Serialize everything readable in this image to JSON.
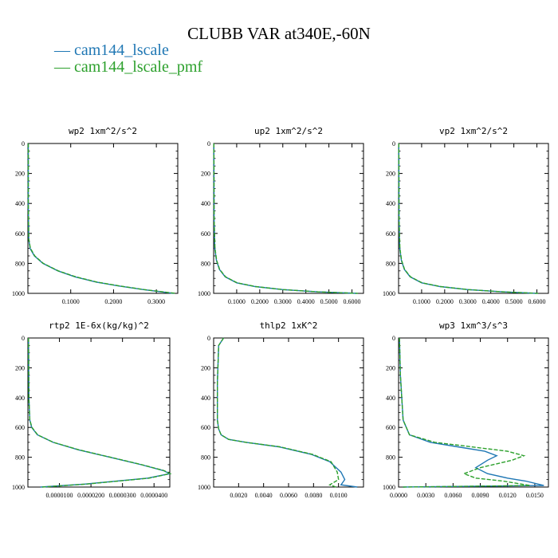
{
  "title": "CLUBB VAR at340E,-60N",
  "legend": [
    {
      "label": "cam144_lscale",
      "color": "#1f77b4",
      "style": "solid"
    },
    {
      "label": "cam144_lscale_pmf",
      "color": "#2ca02c",
      "style": "dashed"
    }
  ],
  "chart_data": [
    {
      "type": "line",
      "title": "wp2  1xm^2/s^2",
      "xlim": [
        0,
        0.35
      ],
      "xticks": [
        0.1,
        0.2,
        0.3
      ],
      "xtick_labels": [
        "0.1000",
        "0.2000",
        "0.3000"
      ],
      "ylim": [
        1000,
        0
      ],
      "yticks": [
        0,
        200,
        400,
        600,
        800,
        1000
      ],
      "ytick_labels": [
        "0",
        "200",
        "400",
        "600",
        "800",
        "1000"
      ],
      "series": [
        {
          "name": "cam144_lscale",
          "x": [
            0.001,
            0.001,
            0.002,
            0.005,
            0.015,
            0.035,
            0.07,
            0.11,
            0.16,
            0.21,
            0.27,
            0.34
          ],
          "y": [
            0,
            400,
            640,
            700,
            750,
            800,
            850,
            890,
            925,
            950,
            975,
            1000
          ]
        },
        {
          "name": "cam144_lscale_pmf",
          "x": [
            0.001,
            0.001,
            0.002,
            0.006,
            0.016,
            0.036,
            0.071,
            0.112,
            0.162,
            0.213,
            0.272,
            0.345
          ],
          "y": [
            0,
            400,
            640,
            700,
            750,
            800,
            850,
            890,
            925,
            950,
            975,
            1000
          ]
        }
      ]
    },
    {
      "type": "line",
      "title": "up2  1xm^2/s^2",
      "xlim": [
        0,
        0.65
      ],
      "xticks": [
        0.1,
        0.2,
        0.3,
        0.4,
        0.5,
        0.6
      ],
      "xtick_labels": [
        "0.1000",
        "0.2000",
        "0.3000",
        "0.4000",
        "0.5000",
        "0.6000"
      ],
      "ylim": [
        1000,
        0
      ],
      "yticks": [
        0,
        200,
        400,
        600,
        800,
        1000
      ],
      "ytick_labels": [
        "0",
        "200",
        "400",
        "600",
        "800",
        "1000"
      ],
      "series": [
        {
          "name": "cam144_lscale",
          "x": [
            0.001,
            0.002,
            0.005,
            0.012,
            0.025,
            0.05,
            0.1,
            0.18,
            0.3,
            0.45,
            0.62
          ],
          "y": [
            0,
            500,
            700,
            780,
            840,
            890,
            930,
            955,
            975,
            990,
            1000
          ]
        },
        {
          "name": "cam144_lscale_pmf",
          "x": [
            0.001,
            0.002,
            0.006,
            0.013,
            0.026,
            0.052,
            0.102,
            0.182,
            0.302,
            0.452,
            0.625
          ],
          "y": [
            0,
            500,
            700,
            780,
            840,
            890,
            930,
            955,
            975,
            990,
            1000
          ]
        }
      ]
    },
    {
      "type": "line",
      "title": "vp2  1xm^2/s^2",
      "xlim": [
        0,
        0.65
      ],
      "xticks": [
        0.1,
        0.2,
        0.3,
        0.4,
        0.5,
        0.6
      ],
      "xtick_labels": [
        "0.1000",
        "0.2000",
        "0.3000",
        "0.4000",
        "0.5000",
        "0.6000"
      ],
      "ylim": [
        1000,
        0
      ],
      "yticks": [
        0,
        200,
        400,
        600,
        800,
        1000
      ],
      "ytick_labels": [
        "0",
        "200",
        "400",
        "600",
        "800",
        "1000"
      ],
      "series": [
        {
          "name": "cam144_lscale",
          "x": [
            0.001,
            0.002,
            0.005,
            0.012,
            0.025,
            0.05,
            0.1,
            0.18,
            0.3,
            0.45,
            0.6
          ],
          "y": [
            0,
            500,
            700,
            780,
            840,
            890,
            930,
            955,
            975,
            990,
            1000
          ]
        },
        {
          "name": "cam144_lscale_pmf",
          "x": [
            0.001,
            0.002,
            0.006,
            0.013,
            0.026,
            0.052,
            0.102,
            0.182,
            0.302,
            0.452,
            0.605
          ],
          "y": [
            0,
            500,
            700,
            780,
            840,
            890,
            930,
            955,
            975,
            990,
            1000
          ]
        }
      ]
    },
    {
      "type": "line",
      "title": "rtp2  1E-6x(kg/kg)^2",
      "xlim": [
        0,
        4.5e-05
      ],
      "xticks": [
        1e-05,
        2e-05,
        3e-05,
        4e-05
      ],
      "xtick_labels": [
        "0.0000100",
        "0.0000200",
        "0.0000300",
        "0.0000400"
      ],
      "ylim": [
        1000,
        0
      ],
      "yticks": [
        0,
        200,
        400,
        600,
        800,
        1000
      ],
      "ytick_labels": [
        "0",
        "200",
        "400",
        "600",
        "800",
        "1000"
      ],
      "series": [
        {
          "name": "cam144_lscale",
          "x": [
            2e-07,
            3e-07,
            6e-07,
            1.2e-06,
            3e-06,
            8e-06,
            1.6e-05,
            2.6e-05,
            3.6e-05,
            4.3e-05,
            4.5e-05,
            3.8e-05,
            1.8e-05,
            4e-06
          ],
          "y": [
            0,
            400,
            550,
            600,
            650,
            700,
            750,
            800,
            850,
            890,
            910,
            940,
            980,
            1000
          ]
        },
        {
          "name": "cam144_lscale_pmf",
          "x": [
            2e-07,
            3e-07,
            6e-07,
            1.3e-06,
            3.1e-06,
            8.1e-06,
            1.62e-05,
            2.62e-05,
            3.62e-05,
            4.32e-05,
            4.51e-05,
            3.85e-05,
            1.85e-05,
            4.5e-06
          ],
          "y": [
            0,
            400,
            550,
            600,
            650,
            700,
            750,
            800,
            850,
            890,
            910,
            940,
            980,
            1000
          ]
        }
      ]
    },
    {
      "type": "line",
      "title": "thlp2  1xK^2",
      "xlim": [
        0,
        0.012
      ],
      "xticks": [
        0.002,
        0.004,
        0.006,
        0.008,
        0.01
      ],
      "xtick_labels": [
        "0.0020",
        "0.0040",
        "0.0060",
        "0.0080",
        "0.0100"
      ],
      "ylim": [
        1000,
        0
      ],
      "yticks": [
        0,
        200,
        400,
        600,
        800,
        1000
      ],
      "ytick_labels": [
        "0",
        "200",
        "400",
        "600",
        "800",
        "1000"
      ],
      "series": [
        {
          "name": "cam144_lscale",
          "x": [
            0.0008,
            0.0004,
            0.0003,
            0.0003,
            0.0004,
            0.0006,
            0.0012,
            0.0026,
            0.0052,
            0.0078,
            0.0093,
            0.0102,
            0.0105,
            0.0102,
            0.0115
          ],
          "y": [
            0,
            50,
            300,
            550,
            610,
            650,
            680,
            700,
            730,
            780,
            830,
            900,
            950,
            985,
            1000
          ]
        },
        {
          "name": "cam144_lscale_pmf",
          "x": [
            0.0008,
            0.0004,
            0.0003,
            0.0003,
            0.0004,
            0.0006,
            0.0012,
            0.0026,
            0.0053,
            0.0079,
            0.0094,
            0.0099,
            0.01,
            0.0093,
            0.0098
          ],
          "y": [
            0,
            50,
            300,
            550,
            610,
            650,
            680,
            700,
            730,
            780,
            830,
            900,
            950,
            985,
            1000
          ]
        }
      ]
    },
    {
      "type": "line",
      "title": "wp3  1xm^3/s^3",
      "xlim": [
        0,
        0.0165
      ],
      "xticks": [
        0,
        0.003,
        0.006,
        0.009,
        0.012,
        0.015
      ],
      "xtick_labels": [
        "0.0000",
        "0.0030",
        "0.0060",
        "0.0090",
        "0.0120",
        "0.0150"
      ],
      "ylim": [
        1000,
        0
      ],
      "yticks": [
        0,
        200,
        400,
        600,
        800,
        1000
      ],
      "ytick_labels": [
        "0",
        "200",
        "400",
        "600",
        "800",
        "1000"
      ],
      "series": [
        {
          "name": "cam144_lscale",
          "x": [
            0.0001,
            0.0002,
            0.0005,
            0.0012,
            0.0035,
            0.0065,
            0.0095,
            0.0108,
            0.0098,
            0.0085,
            0.0098,
            0.012,
            0.014,
            0.016,
            0.0005
          ],
          "y": [
            0,
            250,
            550,
            650,
            700,
            730,
            760,
            790,
            820,
            870,
            910,
            940,
            960,
            990,
            1000
          ]
        },
        {
          "name": "cam144_lscale_pmf",
          "x": [
            0.0001,
            0.0002,
            0.0005,
            0.0012,
            0.004,
            0.008,
            0.012,
            0.0138,
            0.0125,
            0.009,
            0.0072,
            0.0085,
            0.0115,
            0.0145,
            0.0005
          ],
          "y": [
            0,
            250,
            550,
            650,
            700,
            730,
            760,
            790,
            820,
            870,
            910,
            940,
            960,
            990,
            1000
          ]
        }
      ]
    }
  ]
}
